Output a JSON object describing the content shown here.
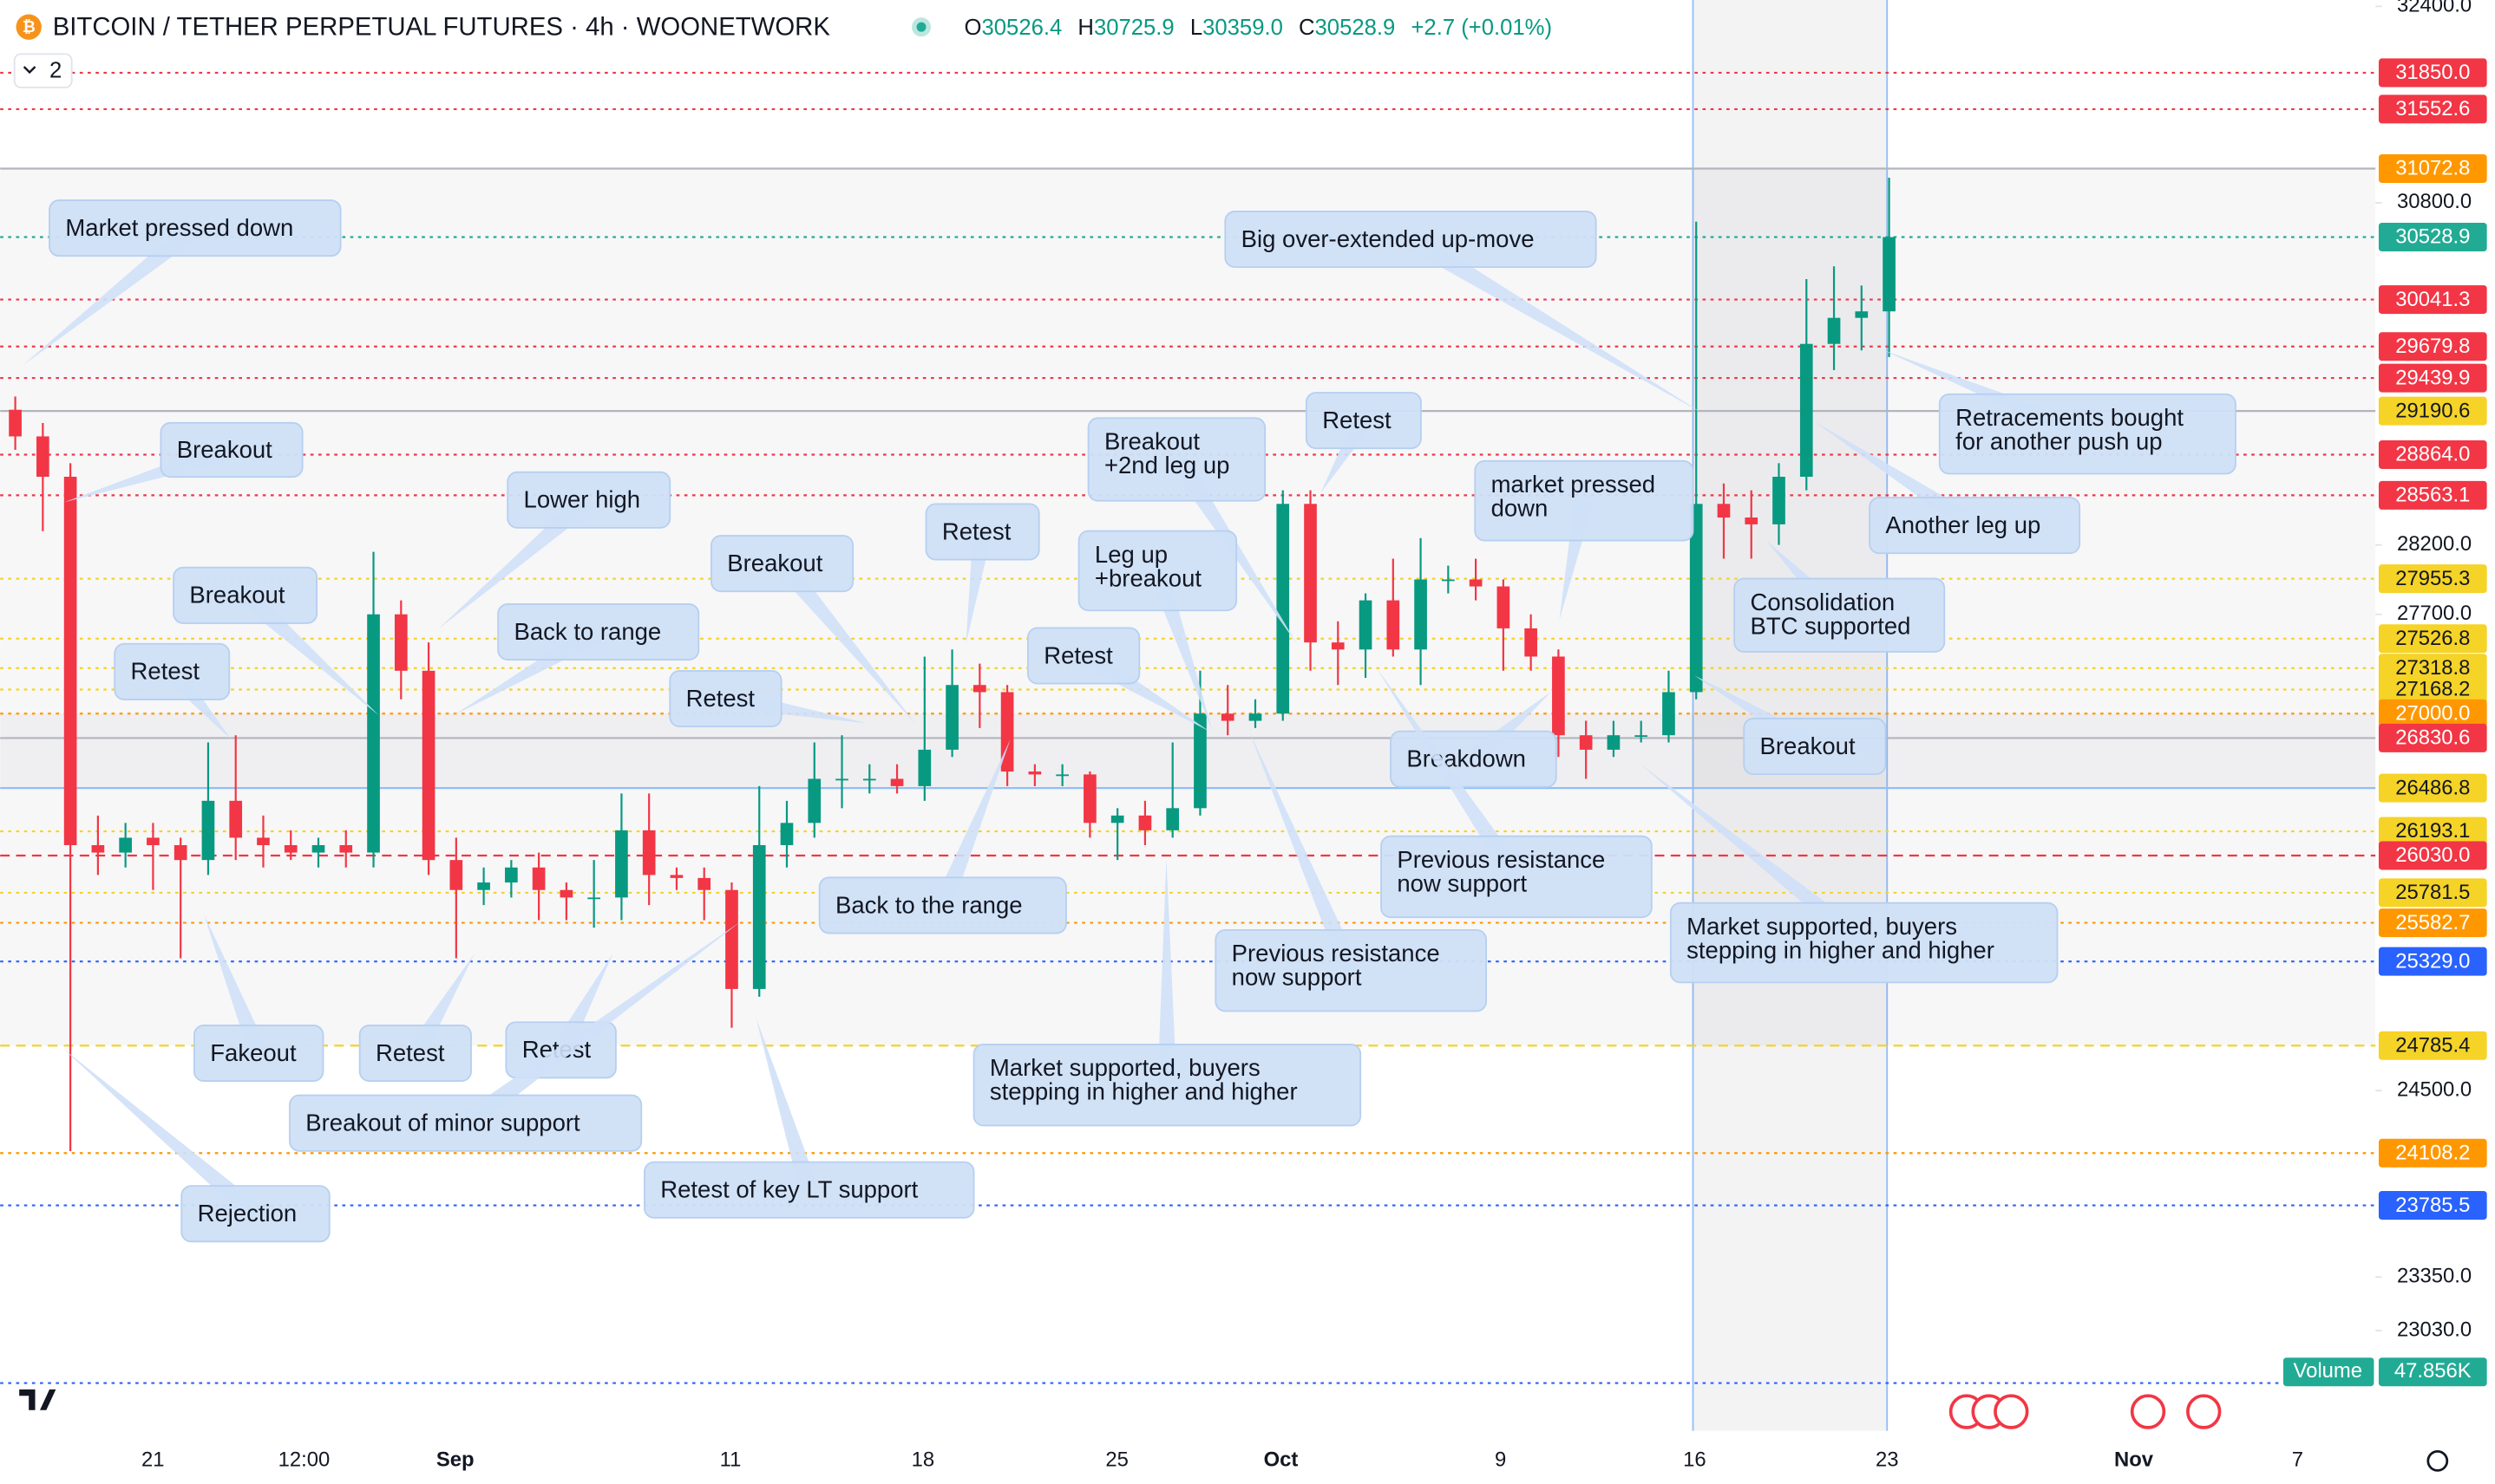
{
  "header": {
    "title": "BITCOIN / TETHER PERPETUAL FUTURES · 4h · WOONETWORK",
    "ohlc": [
      {
        "label": "O",
        "value": "30526.4"
      },
      {
        "label": "H",
        "value": "30725.9"
      },
      {
        "label": "L",
        "value": "30359.0"
      },
      {
        "label": "C",
        "value": "30528.9"
      }
    ],
    "change": "+2.7 (+0.01%)",
    "panes_count": "2"
  },
  "chart_data": {
    "type": "candlestick",
    "log_scale": true,
    "up_color": "#089981",
    "down_color": "#f23645",
    "ylim": [
      22443,
      32453
    ],
    "yticks": [
      {
        "value": 32400,
        "label": "32400.0"
      },
      {
        "value": 30800,
        "label": "30800.0"
      },
      {
        "value": 28200,
        "label": "28200.0"
      },
      {
        "value": 27700,
        "label": "27700.0"
      },
      {
        "value": 24500,
        "label": "24500.0"
      },
      {
        "value": 23350,
        "label": "23350.0"
      },
      {
        "value": 23030,
        "label": "23030.0"
      }
    ],
    "xtick_labels": [
      "21",
      "12:00",
      "Sep",
      "11",
      "18",
      "25",
      "Oct",
      "9",
      "16",
      "23",
      "Nov",
      "7"
    ],
    "x": [
      "Aug 16",
      "Aug 17",
      "Aug 18",
      "Aug 19",
      "Aug 20",
      "Aug 21",
      "Aug 22",
      "Aug 23",
      "Aug 24",
      "Aug 25",
      "Aug 26",
      "Aug 27",
      "Aug 28",
      "Aug 29",
      "Aug 30",
      "Aug 31",
      "Sep 1",
      "Sep 2",
      "Sep 3",
      "Sep 4",
      "Sep 5",
      "Sep 6",
      "Sep 7",
      "Sep 8",
      "Sep 9",
      "Sep 10",
      "Sep 11",
      "Sep 12",
      "Sep 13",
      "Sep 14",
      "Sep 15",
      "Sep 16",
      "Sep 17",
      "Sep 18",
      "Sep 19",
      "Sep 20",
      "Sep 21",
      "Sep 22",
      "Sep 23",
      "Sep 24",
      "Sep 25",
      "Sep 26",
      "Sep 27",
      "Sep 28",
      "Sep 29",
      "Sep 30",
      "Oct 1",
      "Oct 2",
      "Oct 3",
      "Oct 4",
      "Oct 5",
      "Oct 6",
      "Oct 7",
      "Oct 8",
      "Oct 9",
      "Oct 10",
      "Oct 11",
      "Oct 12",
      "Oct 13",
      "Oct 14",
      "Oct 15",
      "Oct 16",
      "Oct 17",
      "Oct 18",
      "Oct 19",
      "Oct 20",
      "Oct 21",
      "Oct 22",
      "Oct 23"
    ],
    "open": [
      29200,
      29000,
      28700,
      26100,
      26050,
      26150,
      26100,
      26000,
      26400,
      26150,
      26100,
      26050,
      26100,
      26050,
      27700,
      27300,
      26000,
      25800,
      25850,
      25950,
      25800,
      25750,
      25750,
      26200,
      25900,
      25880,
      25800,
      25150,
      26100,
      26250,
      26550,
      26550,
      26550,
      26500,
      26750,
      27200,
      27150,
      26600,
      26580,
      26580,
      26250,
      26300,
      26200,
      26350,
      27000,
      26950,
      27000,
      28500,
      27500,
      27450,
      27800,
      27450,
      27950,
      27950,
      27900,
      27600,
      27400,
      26850,
      26750,
      26850,
      26850,
      27150,
      28500,
      28400,
      28350,
      28700,
      29700,
      29900,
      29950
    ],
    "high": [
      29300,
      29100,
      28800,
      26300,
      26250,
      26250,
      26150,
      26800,
      26850,
      26300,
      26200,
      26150,
      26200,
      28150,
      27800,
      27500,
      26150,
      25950,
      26000,
      26050,
      25850,
      26000,
      26450,
      26450,
      25950,
      25950,
      25850,
      26500,
      26400,
      26800,
      26850,
      26650,
      26650,
      27400,
      27450,
      27350,
      27200,
      26650,
      26650,
      26600,
      26350,
      26400,
      26800,
      27300,
      27200,
      27100,
      28600,
      28600,
      27650,
      27850,
      28100,
      28250,
      28050,
      28100,
      27950,
      27700,
      27450,
      26950,
      26950,
      26950,
      27300,
      30650,
      28650,
      28600,
      28800,
      30200,
      30300,
      30150,
      31000
    ],
    "low": [
      28900,
      28300,
      24120,
      25900,
      25950,
      25800,
      25350,
      25900,
      26000,
      25950,
      26000,
      25950,
      25950,
      25950,
      27100,
      25900,
      25350,
      25700,
      25750,
      25600,
      25600,
      25550,
      25600,
      25700,
      25800,
      25600,
      24900,
      25100,
      25950,
      26150,
      26350,
      26450,
      26450,
      26400,
      26700,
      26900,
      26500,
      26500,
      26500,
      26150,
      26000,
      26100,
      26150,
      26300,
      26850,
      26900,
      26950,
      27300,
      27200,
      27250,
      27400,
      27200,
      27850,
      27800,
      27300,
      27300,
      26700,
      26550,
      26700,
      26800,
      26800,
      27100,
      28100,
      28100,
      28200,
      28600,
      29500,
      29650,
      29600
    ],
    "close": [
      29000,
      28700,
      26100,
      26050,
      26150,
      26100,
      26000,
      26400,
      26150,
      26100,
      26050,
      26100,
      26050,
      27700,
      27300,
      26000,
      25800,
      25850,
      25950,
      25800,
      25750,
      25750,
      26200,
      25900,
      25880,
      25800,
      25150,
      26100,
      26250,
      26550,
      26550,
      26550,
      26500,
      26750,
      27200,
      27150,
      26600,
      26580,
      26580,
      26250,
      26300,
      26200,
      26350,
      27000,
      26950,
      27000,
      28500,
      27500,
      27450,
      27800,
      27450,
      27950,
      27950,
      27900,
      27600,
      27400,
      26850,
      26750,
      26850,
      26850,
      27150,
      28500,
      28400,
      28350,
      28700,
      29700,
      29900,
      29950,
      30528.9
    ],
    "levels": [
      {
        "value": 31850,
        "label": "31850.0",
        "color": "#f23645",
        "style": "dotted"
      },
      {
        "value": 31552.6,
        "label": "31552.6",
        "color": "#f23645",
        "style": "dotted"
      },
      {
        "value": 31072.8,
        "label": "31072.8",
        "color": "#ff9800",
        "style": "solid",
        "line_color": "#b2b5be"
      },
      {
        "value": 30528.9,
        "label": "30528.9",
        "color": "#22ab94",
        "style": "dotted"
      },
      {
        "value": 30041.3,
        "label": "30041.3",
        "color": "#f23645",
        "style": "dotted"
      },
      {
        "value": 29679.8,
        "label": "29679.8",
        "color": "#f23645",
        "style": "dotted"
      },
      {
        "value": 29439.9,
        "label": "29439.9",
        "color": "#f23645",
        "style": "dotted"
      },
      {
        "value": 29190.6,
        "label": "29190.6",
        "color": "#f5d327",
        "style": "solid",
        "line_color": "#b2b5be"
      },
      {
        "value": 28864,
        "label": "28864.0",
        "color": "#f23645",
        "style": "dotted"
      },
      {
        "value": 28563.1,
        "label": "28563.1",
        "color": "#f23645",
        "style": "dotted"
      },
      {
        "value": 27955.3,
        "label": "27955.3",
        "color": "#f5d327",
        "style": "dotted"
      },
      {
        "value": 27526.8,
        "label": "27526.8",
        "color": "#f5d327",
        "style": "dotted"
      },
      {
        "value": 27318.8,
        "label": "27318.8",
        "color": "#f5d327",
        "style": "dotted"
      },
      {
        "value": 27168.2,
        "label": "27168.2",
        "color": "#f5d327",
        "style": "dotted"
      },
      {
        "value": 27000,
        "label": "27000.0",
        "color": "#ff9800",
        "style": "dotted"
      },
      {
        "value": 26830.6,
        "label": "26830.6",
        "color": "#f23645",
        "style": "solid",
        "line_color": "#b2b5be"
      },
      {
        "value": 26486.8,
        "label": "26486.8",
        "color": "#f5d327",
        "style": "solid",
        "line_color": "#90bff9"
      },
      {
        "value": 26193.1,
        "label": "26193.1",
        "color": "#f5d327",
        "style": "dotted"
      },
      {
        "value": 26030,
        "label": "26030.0",
        "color": "#f23645",
        "style": "dashed"
      },
      {
        "value": 25781.5,
        "label": "25781.5",
        "color": "#f5d327",
        "style": "dotted"
      },
      {
        "value": 25582.7,
        "label": "25582.7",
        "color": "#ff9800",
        "style": "dotted"
      },
      {
        "value": 25329,
        "label": "25329.0",
        "color": "#2962ff",
        "style": "dotted"
      },
      {
        "value": 24785.4,
        "label": "24785.4",
        "color": "#f5d327",
        "style": "dashed"
      },
      {
        "value": 24108.2,
        "label": "24108.2",
        "color": "#ff9800",
        "style": "dotted"
      },
      {
        "value": 23785.5,
        "label": "23785.5",
        "color": "#2962ff",
        "style": "dotted"
      }
    ],
    "volume_title": "Volume",
    "volume_last": {
      "value": 47.856,
      "label": "47.856K"
    },
    "annotations": [
      [
        "Market pressed down"
      ],
      [
        "Breakout"
      ],
      [
        "Lower high"
      ],
      [
        "Breakout"
      ],
      [
        "Back to range"
      ],
      [
        "Retest"
      ],
      [
        "Breakout"
      ],
      [
        "Retest"
      ],
      [
        "Retest"
      ],
      [
        "Breakout",
        "+2nd leg up"
      ],
      [
        "Retest"
      ],
      [
        "Leg up",
        "+breakout"
      ],
      [
        "Retest"
      ],
      [
        "market pressed",
        "down"
      ],
      [
        "Big over-extended up-move"
      ],
      [
        "Retracements bought",
        "for another push up"
      ],
      [
        "Another leg up"
      ],
      [
        "Consolidation",
        "BTC supported"
      ],
      [
        "Breakout"
      ],
      [
        "Breakdown"
      ],
      [
        "Previous resistance",
        "now support"
      ],
      [
        "Previous resistance",
        "now support"
      ],
      [
        "Market supported, buyers",
        "stepping in higher and higher"
      ],
      [
        "Market supported, buyers",
        "stepping in higher and higher"
      ],
      [
        "Back to the range"
      ],
      [
        "Fakeout"
      ],
      [
        "Retest"
      ],
      [
        "Retest"
      ],
      [
        "Breakout of minor support"
      ],
      [
        "Retest of key LT support"
      ],
      [
        "Rejection"
      ]
    ]
  }
}
